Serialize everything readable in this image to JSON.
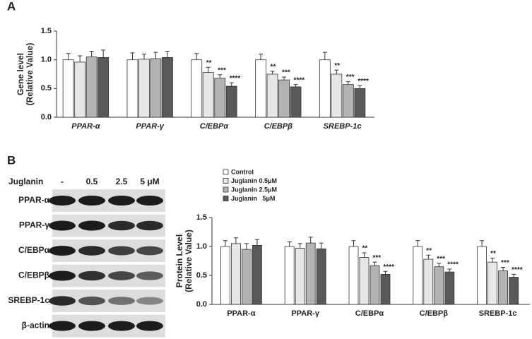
{
  "panels": [
    "A",
    "B"
  ],
  "blot": {
    "header": "Juglanin",
    "lanes": [
      "-",
      "0.5",
      "2.5",
      "5 μM"
    ],
    "rows": [
      "PPAR-α",
      "PPAR-γ",
      "C/EBPα",
      "C/EBPβ",
      "SREBP-1c",
      "β-actin"
    ]
  },
  "chart_data": [
    {
      "type": "bar",
      "ylabel": [
        "Gene level",
        "(Relative Value)"
      ],
      "categories": [
        "PPAR-α",
        "PPAR-γ",
        "C/EBPα",
        "C/EBPβ",
        "SREBP-1c"
      ],
      "ylim": [
        0,
        1.5
      ],
      "yticks": [
        {
          "value": 0,
          "label": "0.0"
        },
        0.5,
        {
          "value": 1,
          "label": "1.0"
        },
        1.5
      ],
      "series": [
        {
          "color": "#ffffff",
          "values": [
            1.0,
            1.0,
            1.0,
            1.0,
            1.0
          ],
          "errors": [
            0.11,
            0.12,
            0.11,
            0.1,
            0.13
          ],
          "stars": [
            null,
            null,
            null,
            null,
            null
          ]
        },
        {
          "color": "#e6e6e6",
          "values": [
            0.96,
            1.01,
            0.78,
            0.75,
            0.75
          ],
          "errors": [
            0.11,
            0.09,
            0.09,
            0.05,
            0.07
          ],
          "stars": [
            null,
            null,
            "**",
            "**",
            "**"
          ]
        },
        {
          "color": "#b3b3b3",
          "values": [
            1.05,
            1.02,
            0.68,
            0.65,
            0.57
          ],
          "errors": [
            0.1,
            0.11,
            0.06,
            0.05,
            0.05
          ],
          "stars": [
            null,
            null,
            "***",
            "***",
            "***"
          ]
        },
        {
          "color": "#595959",
          "values": [
            1.04,
            1.04,
            0.54,
            0.53,
            0.5
          ],
          "errors": [
            0.13,
            0.11,
            0.06,
            0.04,
            0.05
          ],
          "stars": [
            null,
            null,
            "****",
            "****",
            "****"
          ]
        }
      ]
    },
    {
      "type": "bar",
      "ylabel": [
        "Protein Level",
        "(Relative Value)"
      ],
      "categories": [
        "PPAR-α",
        "PPAR-γ",
        "C/EBPα",
        "C/EBPβ",
        "SREBP-1c"
      ],
      "ylim": [
        0,
        1.5
      ],
      "yticks": [
        {
          "value": 0,
          "label": "0.0"
        },
        0.5,
        {
          "value": 1,
          "label": "1.0"
        },
        1.5
      ],
      "series": [
        {
          "name": "Control",
          "color": "#ffffff",
          "values": [
            1.0,
            1.0,
            1.0,
            1.0,
            1.0
          ],
          "errors": [
            0.1,
            0.08,
            0.1,
            0.1,
            0.1
          ],
          "stars": [
            null,
            null,
            null,
            null,
            null
          ]
        },
        {
          "name": "Juglanin 0.5μM",
          "color": "#e6e6e6",
          "values": [
            1.05,
            0.97,
            0.81,
            0.78,
            0.73
          ],
          "errors": [
            0.1,
            0.08,
            0.08,
            0.07,
            0.07
          ],
          "stars": [
            null,
            null,
            "**",
            "**",
            "**"
          ]
        },
        {
          "name": "Juglanin 2.5μM",
          "color": "#b3b3b3",
          "values": [
            0.95,
            1.06,
            0.67,
            0.65,
            0.58
          ],
          "errors": [
            0.1,
            0.1,
            0.06,
            0.06,
            0.06
          ],
          "stars": [
            null,
            null,
            "***",
            "***",
            "***"
          ]
        },
        {
          "name": "Juglanin   5μM",
          "color": "#595959",
          "values": [
            1.02,
            0.96,
            0.52,
            0.56,
            0.47
          ],
          "errors": [
            0.1,
            0.1,
            0.05,
            0.05,
            0.05
          ],
          "stars": [
            null,
            null,
            "****",
            "****",
            "****"
          ]
        }
      ]
    }
  ]
}
